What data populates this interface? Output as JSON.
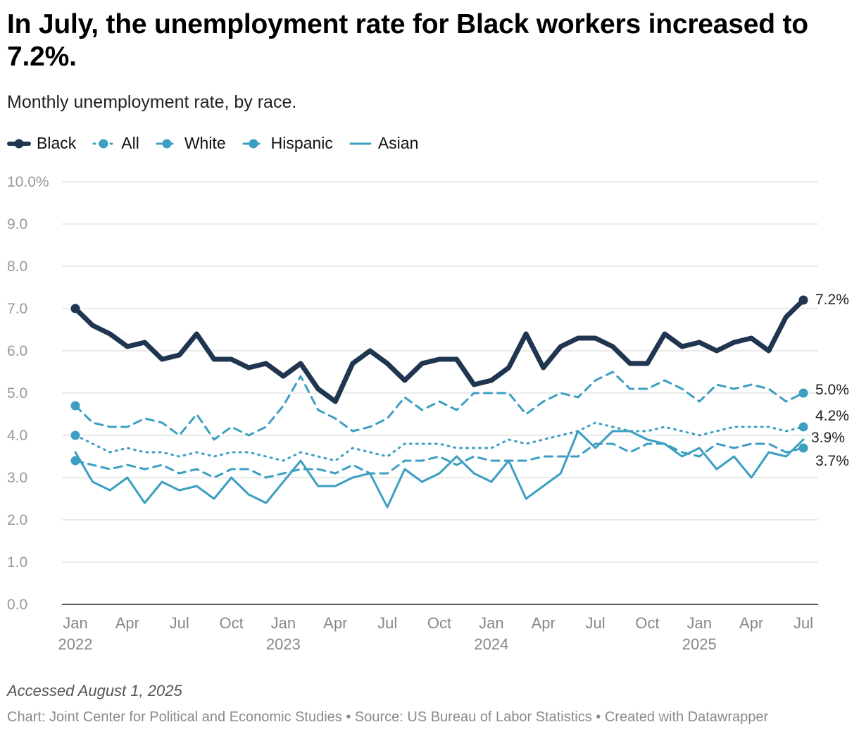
{
  "header": {
    "title": "In July, the unemployment rate for Black workers increased to 7.2%.",
    "subtitle": "Monthly unemployment rate, by race."
  },
  "footer": {
    "accessed": "Accessed August 1, 2025",
    "credits": "Chart: Joint Center for Political and Economic Studies • Source: US Bureau of Labor Statistics • Created with Datawrapper"
  },
  "colors": {
    "black": "#1f3550",
    "teal": "#3c9fc2",
    "grid": "#dddddd",
    "axis_text": "#999999"
  },
  "chart_data": {
    "type": "line",
    "x": [
      "2022-01",
      "2022-02",
      "2022-03",
      "2022-04",
      "2022-05",
      "2022-06",
      "2022-07",
      "2022-08",
      "2022-09",
      "2022-10",
      "2022-11",
      "2022-12",
      "2023-01",
      "2023-02",
      "2023-03",
      "2023-04",
      "2023-05",
      "2023-06",
      "2023-07",
      "2023-08",
      "2023-09",
      "2023-10",
      "2023-11",
      "2023-12",
      "2024-01",
      "2024-02",
      "2024-03",
      "2024-04",
      "2024-05",
      "2024-06",
      "2024-07",
      "2024-08",
      "2024-09",
      "2024-10",
      "2024-11",
      "2024-12",
      "2025-01",
      "2025-02",
      "2025-03",
      "2025-04",
      "2025-05",
      "2025-06",
      "2025-07"
    ],
    "x_ticks": [
      {
        "month": "Jan",
        "year": "2022",
        "i": 0
      },
      {
        "month": "Apr",
        "year": "",
        "i": 3
      },
      {
        "month": "Jul",
        "year": "",
        "i": 6
      },
      {
        "month": "Oct",
        "year": "",
        "i": 9
      },
      {
        "month": "Jan",
        "year": "2023",
        "i": 12
      },
      {
        "month": "Apr",
        "year": "",
        "i": 15
      },
      {
        "month": "Jul",
        "year": "",
        "i": 18
      },
      {
        "month": "Oct",
        "year": "",
        "i": 21
      },
      {
        "month": "Jan",
        "year": "2024",
        "i": 24
      },
      {
        "month": "Apr",
        "year": "",
        "i": 27
      },
      {
        "month": "Jul",
        "year": "",
        "i": 30
      },
      {
        "month": "Oct",
        "year": "",
        "i": 33
      },
      {
        "month": "Jan",
        "year": "2025",
        "i": 36
      },
      {
        "month": "Apr",
        "year": "",
        "i": 39
      },
      {
        "month": "Jul",
        "year": "",
        "i": 42
      }
    ],
    "y_ticks": [
      "0.0",
      "1.0",
      "2.0",
      "3.0",
      "4.0",
      "5.0",
      "6.0",
      "7.0",
      "8.0",
      "9.0",
      "10.0%"
    ],
    "ylim": [
      0,
      10
    ],
    "grid": true,
    "legend_position": "top-left",
    "series": [
      {
        "name": "Black",
        "style": "solid-thick",
        "end_label": "7.2%",
        "values": [
          7.0,
          6.6,
          6.4,
          6.1,
          6.2,
          5.8,
          5.9,
          6.4,
          5.8,
          5.8,
          5.6,
          5.7,
          5.4,
          5.7,
          5.1,
          4.8,
          5.7,
          6.0,
          5.7,
          5.3,
          5.7,
          5.8,
          5.8,
          5.2,
          5.3,
          5.6,
          6.4,
          5.6,
          6.1,
          6.3,
          6.3,
          6.1,
          5.7,
          5.7,
          6.4,
          6.1,
          6.2,
          6.0,
          6.2,
          6.3,
          6.0,
          6.8,
          7.2
        ]
      },
      {
        "name": "All",
        "style": "dotted",
        "end_label": "4.2%",
        "values": [
          4.0,
          3.8,
          3.6,
          3.7,
          3.6,
          3.6,
          3.5,
          3.6,
          3.5,
          3.6,
          3.6,
          3.5,
          3.4,
          3.6,
          3.5,
          3.4,
          3.7,
          3.6,
          3.5,
          3.8,
          3.8,
          3.8,
          3.7,
          3.7,
          3.7,
          3.9,
          3.8,
          3.9,
          4.0,
          4.1,
          4.3,
          4.2,
          4.1,
          4.1,
          4.2,
          4.1,
          4.0,
          4.1,
          4.2,
          4.2,
          4.2,
          4.1,
          4.2
        ]
      },
      {
        "name": "White",
        "style": "dashed",
        "end_label": "3.7%",
        "values": [
          3.4,
          3.3,
          3.2,
          3.3,
          3.2,
          3.3,
          3.1,
          3.2,
          3.0,
          3.2,
          3.2,
          3.0,
          3.1,
          3.2,
          3.2,
          3.1,
          3.3,
          3.1,
          3.1,
          3.4,
          3.4,
          3.5,
          3.3,
          3.5,
          3.4,
          3.4,
          3.4,
          3.5,
          3.5,
          3.5,
          3.8,
          3.8,
          3.6,
          3.8,
          3.8,
          3.6,
          3.5,
          3.8,
          3.7,
          3.8,
          3.8,
          3.6,
          3.7
        ]
      },
      {
        "name": "Hispanic",
        "style": "dashed",
        "end_label": "5.0%",
        "values": [
          4.7,
          4.3,
          4.2,
          4.2,
          4.4,
          4.3,
          4.0,
          4.5,
          3.9,
          4.2,
          4.0,
          4.2,
          4.7,
          5.4,
          4.6,
          4.4,
          4.1,
          4.2,
          4.4,
          4.9,
          4.6,
          4.8,
          4.6,
          5.0,
          5.0,
          5.0,
          4.5,
          4.8,
          5.0,
          4.9,
          5.3,
          5.5,
          5.1,
          5.1,
          5.3,
          5.1,
          4.8,
          5.2,
          5.1,
          5.2,
          5.1,
          4.8,
          5.0
        ]
      },
      {
        "name": "Asian",
        "style": "solid",
        "end_label": "3.9%",
        "values": [
          3.6,
          2.9,
          2.7,
          3.0,
          2.4,
          2.9,
          2.7,
          2.8,
          2.5,
          3.0,
          2.6,
          2.4,
          2.9,
          3.4,
          2.8,
          2.8,
          3.0,
          3.1,
          2.3,
          3.2,
          2.9,
          3.1,
          3.5,
          3.1,
          2.9,
          3.4,
          2.5,
          2.8,
          3.1,
          4.1,
          3.7,
          4.1,
          4.1,
          3.9,
          3.8,
          3.5,
          3.7,
          3.2,
          3.5,
          3.0,
          3.6,
          3.5,
          3.9
        ]
      }
    ]
  }
}
